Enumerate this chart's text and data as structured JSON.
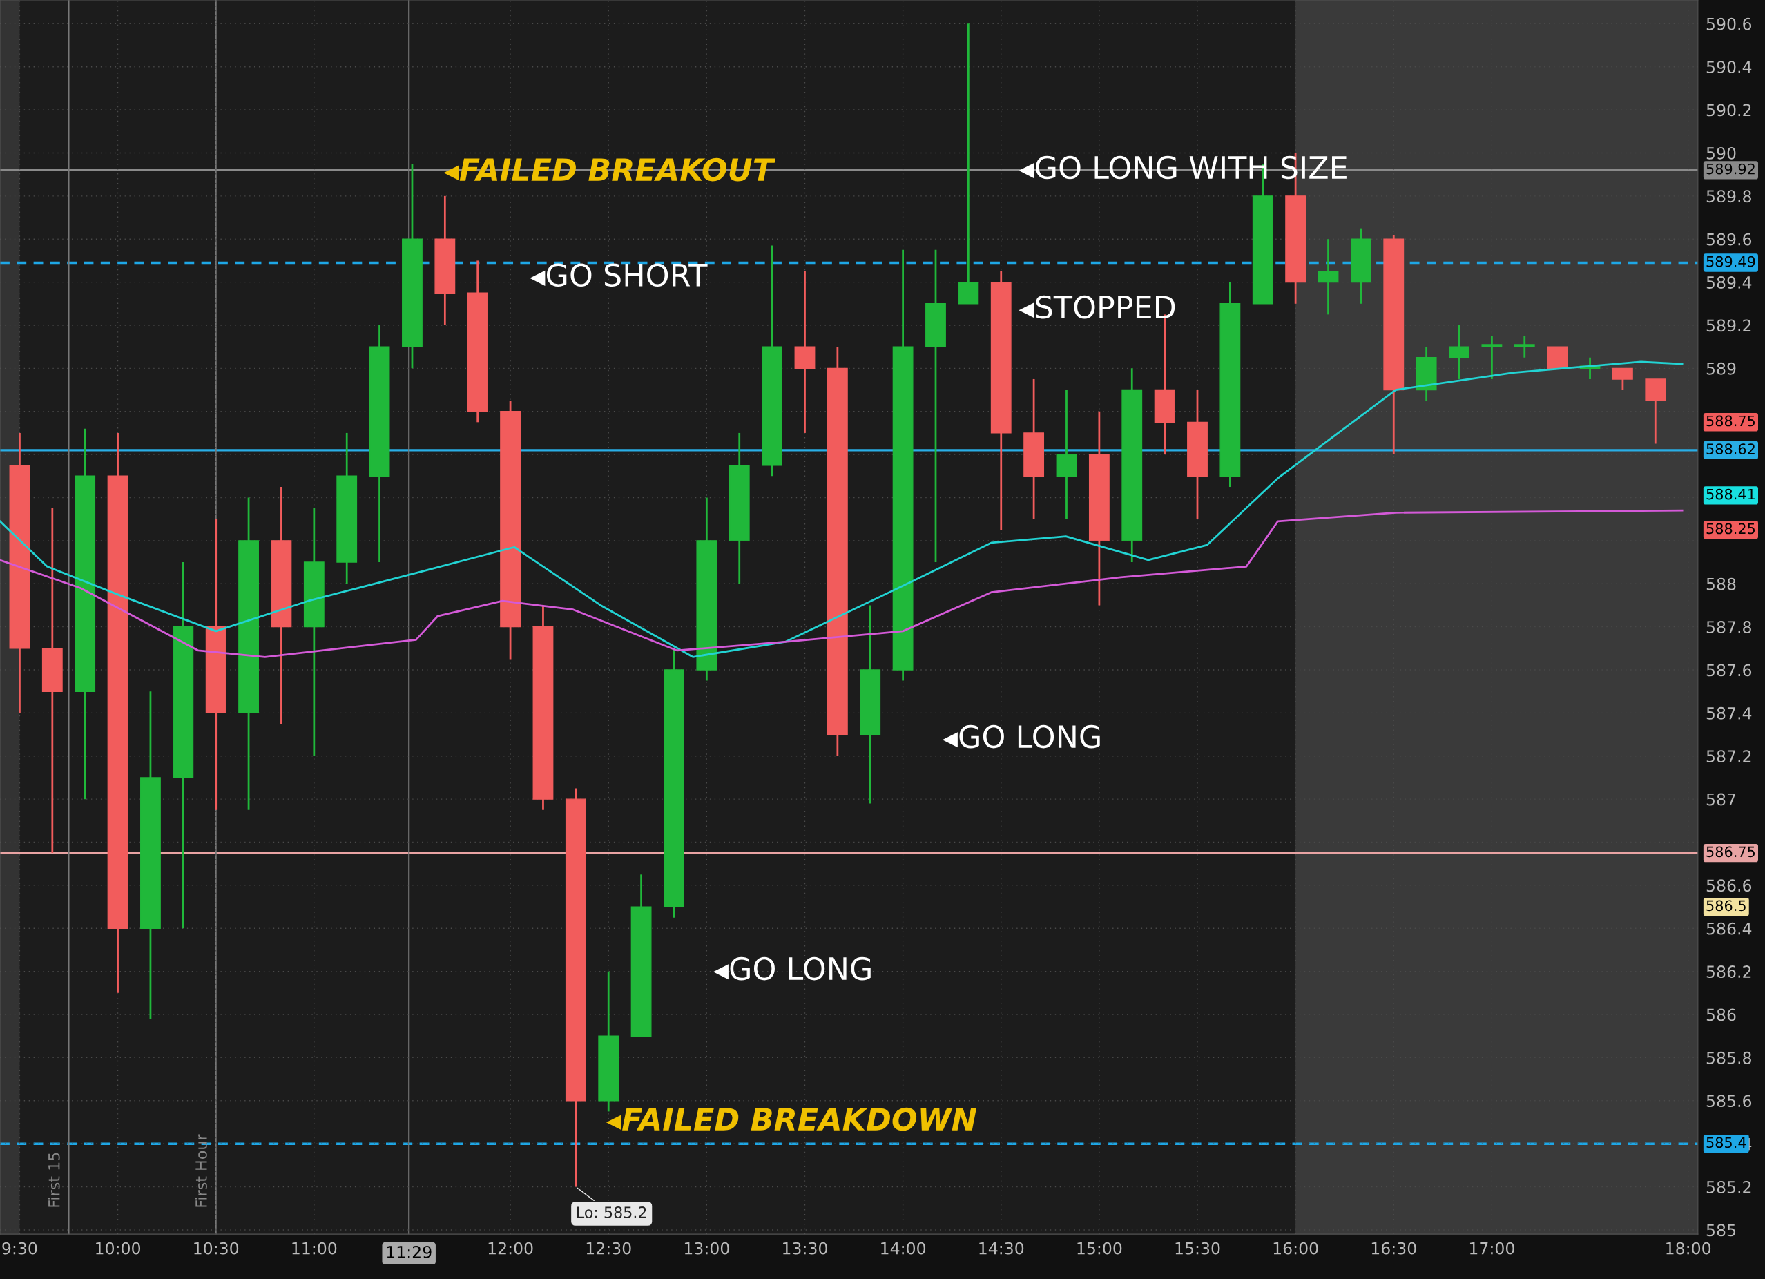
{
  "chart_data": {
    "type": "candlestick",
    "x": [
      9.5,
      9.6667,
      9.8333,
      10.0,
      10.1667,
      10.3333,
      10.5,
      10.6667,
      10.8333,
      11.0,
      11.1667,
      11.3333,
      11.5,
      11.6667,
      11.8333,
      12.0,
      12.1667,
      12.3333,
      12.5,
      12.6667,
      12.8333,
      13.0,
      13.1667,
      13.3333,
      13.5,
      13.6667,
      13.8333,
      14.0,
      14.1667,
      14.3333,
      14.5,
      14.6667,
      14.8333,
      15.0,
      15.1667,
      15.3333,
      15.5,
      15.6667,
      15.8333,
      16.0,
      16.1667,
      16.3333,
      16.5,
      16.6667,
      16.8333,
      17.0,
      17.1667,
      17.3333,
      17.5,
      17.6667,
      17.8333
    ],
    "ohlc": [
      [
        588.55,
        588.7,
        587.4,
        587.7
      ],
      [
        587.7,
        588.35,
        586.75,
        587.5
      ],
      [
        587.5,
        588.72,
        587.0,
        588.5
      ],
      [
        588.5,
        588.7,
        586.1,
        586.4
      ],
      [
        586.4,
        587.5,
        585.98,
        587.1
      ],
      [
        587.1,
        588.1,
        586.4,
        587.8
      ],
      [
        587.8,
        588.3,
        586.95,
        587.4
      ],
      [
        587.4,
        588.4,
        586.95,
        588.2
      ],
      [
        588.2,
        588.45,
        587.35,
        587.8
      ],
      [
        587.8,
        588.35,
        587.2,
        588.1
      ],
      [
        588.1,
        588.7,
        588.0,
        588.5
      ],
      [
        588.5,
        589.2,
        588.1,
        589.1
      ],
      [
        589.1,
        589.95,
        589.0,
        589.6
      ],
      [
        589.6,
        589.8,
        589.2,
        589.35
      ],
      [
        589.35,
        589.5,
        588.75,
        588.8
      ],
      [
        588.8,
        588.85,
        587.65,
        587.8
      ],
      [
        587.8,
        587.9,
        586.95,
        587.0
      ],
      [
        587.0,
        587.05,
        585.2,
        585.6
      ],
      [
        585.6,
        586.2,
        585.55,
        585.9
      ],
      [
        585.9,
        586.65,
        585.9,
        586.5
      ],
      [
        586.5,
        587.7,
        586.45,
        587.6
      ],
      [
        587.6,
        588.4,
        587.55,
        588.2
      ],
      [
        588.2,
        588.7,
        588.0,
        588.55
      ],
      [
        588.55,
        589.57,
        588.5,
        589.1
      ],
      [
        589.1,
        589.45,
        588.7,
        589.0
      ],
      [
        589.0,
        589.1,
        587.2,
        587.3
      ],
      [
        587.3,
        587.9,
        586.98,
        587.6
      ],
      [
        587.6,
        589.55,
        587.55,
        589.1
      ],
      [
        589.1,
        589.55,
        588.1,
        589.3
      ],
      [
        589.3,
        590.6,
        589.3,
        589.4
      ],
      [
        589.4,
        589.45,
        588.25,
        588.7
      ],
      [
        588.7,
        588.95,
        588.3,
        588.5
      ],
      [
        588.5,
        588.9,
        588.3,
        588.6
      ],
      [
        588.6,
        588.8,
        587.9,
        588.2
      ],
      [
        588.2,
        589.0,
        588.1,
        588.9
      ],
      [
        588.9,
        589.25,
        588.6,
        588.75
      ],
      [
        588.75,
        588.9,
        588.3,
        588.5
      ],
      [
        588.5,
        589.4,
        588.45,
        589.3
      ],
      [
        589.3,
        589.95,
        589.3,
        589.8
      ],
      [
        589.8,
        590.0,
        589.3,
        589.4
      ],
      [
        589.4,
        589.6,
        589.25,
        589.45
      ],
      [
        589.4,
        589.65,
        589.3,
        589.6
      ],
      [
        589.6,
        589.62,
        588.6,
        588.9
      ],
      [
        588.9,
        589.1,
        588.85,
        589.05
      ],
      [
        589.05,
        589.2,
        588.95,
        589.1
      ],
      [
        589.1,
        589.15,
        588.95,
        589.1
      ],
      [
        589.1,
        589.15,
        589.05,
        589.1
      ],
      [
        589.1,
        589.1,
        589.0,
        589.0
      ],
      [
        589.0,
        589.05,
        588.95,
        589.0
      ],
      [
        589.0,
        589.0,
        588.9,
        588.95
      ],
      [
        588.95,
        588.95,
        588.65,
        588.85
      ]
    ],
    "series": [
      {
        "type": "line",
        "color": "#22d3d3",
        "x": [
          9.4,
          9.64,
          10.0,
          10.5,
          10.97,
          11.52,
          12.02,
          12.46,
          12.93,
          13.4,
          14.0,
          14.45,
          14.83,
          15.25,
          15.55,
          15.91,
          16.51,
          17.11,
          17.76,
          17.97
        ],
        "values": [
          588.29,
          588.08,
          587.95,
          587.78,
          587.92,
          588.05,
          588.17,
          587.9,
          587.66,
          587.73,
          587.99,
          588.19,
          588.22,
          588.11,
          588.18,
          588.49,
          588.9,
          588.98,
          589.03,
          589.02
        ]
      },
      {
        "type": "line",
        "color": "#d45ad8",
        "x": [
          9.4,
          9.81,
          10.41,
          10.75,
          11.52,
          11.63,
          11.96,
          12.32,
          12.85,
          13.4,
          14.0,
          14.45,
          15.11,
          15.75,
          15.91,
          16.51,
          17.97
        ],
        "values": [
          588.11,
          587.98,
          587.69,
          587.66,
          587.74,
          587.85,
          587.92,
          587.88,
          587.69,
          587.73,
          587.78,
          587.96,
          588.03,
          588.08,
          588.29,
          588.33,
          588.34
        ]
      }
    ],
    "xlim": [
      9.4,
      18.05
    ],
    "xticks": [
      {
        "value": 9.5,
        "label": "9:30"
      },
      {
        "value": 10,
        "label": "10:00"
      },
      {
        "value": 10.5,
        "label": "10:30"
      },
      {
        "value": 11,
        "label": "11:00"
      },
      {
        "value": 12,
        "label": "12:00"
      },
      {
        "value": 12.5,
        "label": "12:30"
      },
      {
        "value": 13,
        "label": "13:00"
      },
      {
        "value": 13.5,
        "label": "13:30"
      },
      {
        "value": 14,
        "label": "14:00"
      },
      {
        "value": 14.5,
        "label": "14:30"
      },
      {
        "value": 15,
        "label": "15:00"
      },
      {
        "value": 15.5,
        "label": "15:30"
      },
      {
        "value": 16,
        "label": "16:00"
      },
      {
        "value": 16.5,
        "label": "16:30"
      },
      {
        "value": 17,
        "label": "17:00"
      },
      {
        "value": 18,
        "label": "18:00"
      }
    ],
    "ylim": [
      584.98,
      590.71
    ],
    "yticks": [
      585,
      585.2,
      585.4,
      585.6,
      585.8,
      586,
      586.2,
      586.4,
      586.6,
      {
        "value": 586.8,
        "label": null
      },
      587,
      587.2,
      587.4,
      587.6,
      587.8,
      588,
      {
        "value": 588.2,
        "label": null
      },
      {
        "value": 588.4,
        "label": null
      },
      {
        "value": 588.6,
        "label": null
      },
      {
        "value": 588.8,
        "label": null
      },
      589,
      589.2,
      589.4,
      589.6,
      589.8,
      590,
      590.2,
      590.4,
      590.6
    ],
    "grid": true,
    "ref_lines": [
      {
        "axis": "y",
        "value": 589.49,
        "label": "589.49",
        "color": "#1ea7e6",
        "line_style": "dashed"
      },
      {
        "axis": "y",
        "value": 588.62,
        "label": "588.62",
        "color": "#29aee6",
        "line_style": "solid"
      },
      {
        "axis": "y",
        "value": 585.4,
        "label": "585.4",
        "color": "#1ea7e6",
        "line_style": "dashed"
      },
      {
        "axis": "y",
        "value": 586.75,
        "label": "586.75",
        "color": "#e8a3a3",
        "line_style": "solid"
      },
      {
        "axis": "y",
        "value": 589.92,
        "label": "589.92",
        "color": "#8a8a8a",
        "line_style": "solid"
      },
      {
        "axis": "x",
        "value": 9.75,
        "label": "First 15",
        "color": "#777777",
        "line_style": "solid"
      },
      {
        "axis": "x",
        "value": 10.5,
        "label": "First Hour",
        "color": "#777777",
        "line_style": "solid"
      },
      {
        "axis": "x",
        "value": 11.4833,
        "label": "11:29",
        "color": "#777777",
        "line_style": "solid"
      }
    ],
    "bands": [
      {
        "axis": "x",
        "from": 9.4,
        "to": 9.5,
        "color": "#333333"
      },
      {
        "axis": "x",
        "from": 16.0,
        "to": 18.05,
        "color": "#3a3a3a"
      }
    ],
    "annotations": [
      {
        "text": "◂FAILED BREAKOUT",
        "x": 11.66,
        "y": 589.91
      },
      "◂GO SHORT",
      {
        "text": "◂GO LONG WITH SIZE",
        "x": 14.59,
        "y": 589.92
      },
      "◂STOPPED",
      "◂GO LONG",
      "◂GO LONG",
      "◂FAILED BREAKDOWN",
      "Lo: 585.2",
      "588.75",
      "588.41",
      "588.25",
      "586.5"
    ]
  }
}
